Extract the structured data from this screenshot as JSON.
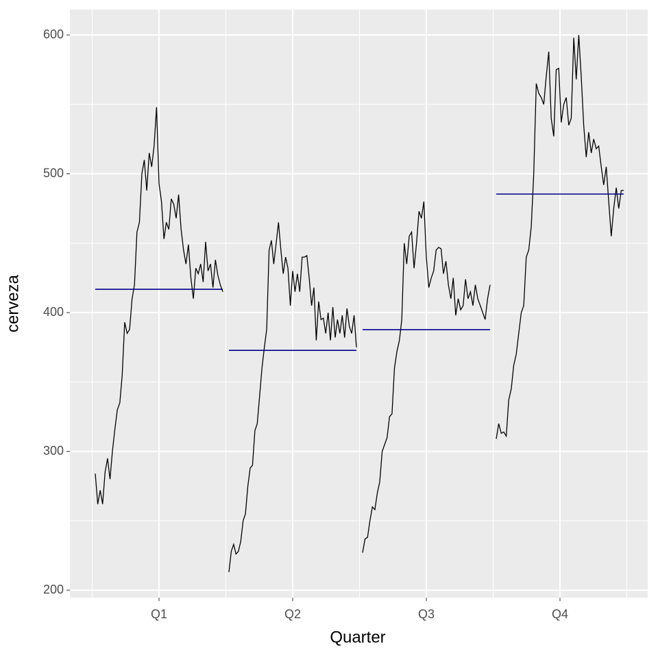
{
  "chart_data": {
    "type": "subseries",
    "x_label": "Quarter",
    "y_label": "cerveza",
    "categories": [
      "Q1",
      "Q2",
      "Q3",
      "Q4"
    ],
    "line_color": "#000000",
    "mean_color": "#00008B",
    "ylim": [
      194.6,
      618.3
    ],
    "yticks": [
      200,
      300,
      400,
      500,
      600
    ],
    "grid": true,
    "panels": [
      {
        "mean": 416.8,
        "values": [
          284,
          262,
          272,
          262,
          285,
          295,
          280,
          300,
          316,
          330,
          335,
          355,
          393,
          385,
          388,
          410,
          420,
          458,
          465,
          500,
          510,
          488,
          515,
          505,
          520,
          548,
          493,
          480,
          453,
          465,
          460,
          482,
          478,
          468,
          485,
          460,
          445,
          435,
          449,
          425,
          410,
          432,
          428,
          435,
          422,
          451,
          430,
          435,
          418,
          438,
          427,
          420,
          415
        ]
      },
      {
        "mean": 372.8,
        "values": [
          213,
          228,
          233,
          226,
          228,
          235,
          250,
          255,
          275,
          288,
          290,
          315,
          320,
          340,
          360,
          375,
          388,
          445,
          452,
          435,
          450,
          465,
          445,
          428,
          440,
          432,
          405,
          430,
          415,
          428,
          415,
          440,
          440,
          441,
          425,
          405,
          418,
          380,
          408,
          395,
          396,
          385,
          400,
          380,
          404,
          382,
          395,
          385,
          398,
          382,
          403,
          390,
          385,
          398,
          375
        ]
      },
      {
        "mean": 387.7,
        "values": [
          227,
          237,
          238,
          250,
          260,
          258,
          270,
          278,
          300,
          305,
          310,
          325,
          327,
          360,
          372,
          380,
          395,
          450,
          435,
          455,
          458,
          432,
          450,
          473,
          468,
          480,
          440,
          418,
          425,
          430,
          445,
          447,
          446,
          428,
          437,
          420,
          410,
          425,
          398,
          410,
          402,
          405,
          424,
          410,
          415,
          405,
          420,
          410,
          405,
          400,
          395,
          410,
          420
        ]
      },
      {
        "mean": 485.4,
        "values": [
          309,
          320,
          313,
          314,
          311,
          337,
          345,
          362,
          370,
          385,
          400,
          405,
          440,
          445,
          462,
          500,
          565,
          558,
          555,
          550,
          570,
          588,
          540,
          527,
          575,
          576,
          537,
          550,
          555,
          535,
          540,
          598,
          568,
          600,
          570,
          535,
          512,
          530,
          515,
          525,
          518,
          520,
          505,
          492,
          505,
          480,
          455,
          475,
          490,
          475,
          488,
          488
        ]
      }
    ]
  }
}
